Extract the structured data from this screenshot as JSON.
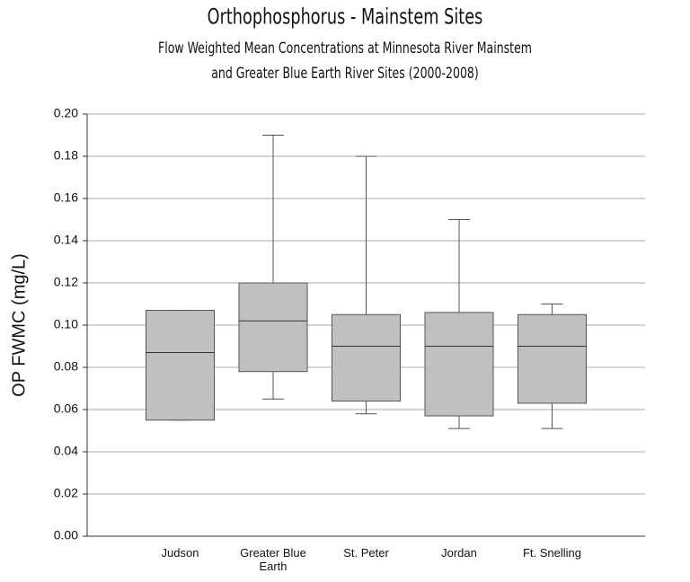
{
  "chart_data": {
    "type": "box",
    "title": "Orthophosphorus - Mainstem Sites",
    "subtitle": [
      "Flow Weighted Mean Concentrations at Minnesota River Mainstem",
      "and Greater Blue Earth River Sites (2000-2008)"
    ],
    "y_label": "OP FWMC (mg/L)",
    "categories": [
      "Judson",
      "Greater Blue Earth",
      "St. Peter",
      "Jordan",
      "Ft. Snelling"
    ],
    "min": [
      0.055,
      0.065,
      0.058,
      0.051,
      0.051
    ],
    "q1": [
      0.055,
      0.078,
      0.064,
      0.057,
      0.063
    ],
    "median": [
      0.087,
      0.102,
      0.09,
      0.09,
      0.09
    ],
    "q3": [
      0.107,
      0.12,
      0.105,
      0.106,
      0.105
    ],
    "max": [
      0.107,
      0.19,
      0.18,
      0.15,
      0.11
    ],
    "color": "#c0c0c0",
    "ylim": [
      0,
      0.2
    ],
    "yticks": [
      {
        "value": 0,
        "label": "0.00"
      },
      {
        "value": 0.02,
        "label": "0.02"
      },
      {
        "value": 0.04,
        "label": "0.04"
      },
      {
        "value": 0.06,
        "label": "0.06"
      },
      {
        "value": 0.08,
        "label": "0.08"
      },
      {
        "value": 0.1,
        "label": "0.10"
      },
      {
        "value": 0.12,
        "label": "0.12"
      },
      {
        "value": 0.14,
        "label": "0.14"
      },
      {
        "value": 0.16,
        "label": "0.16"
      },
      {
        "value": 0.18,
        "label": "0.18"
      },
      {
        "value": 0.2,
        "label": "0.20"
      }
    ],
    "grid": true
  }
}
